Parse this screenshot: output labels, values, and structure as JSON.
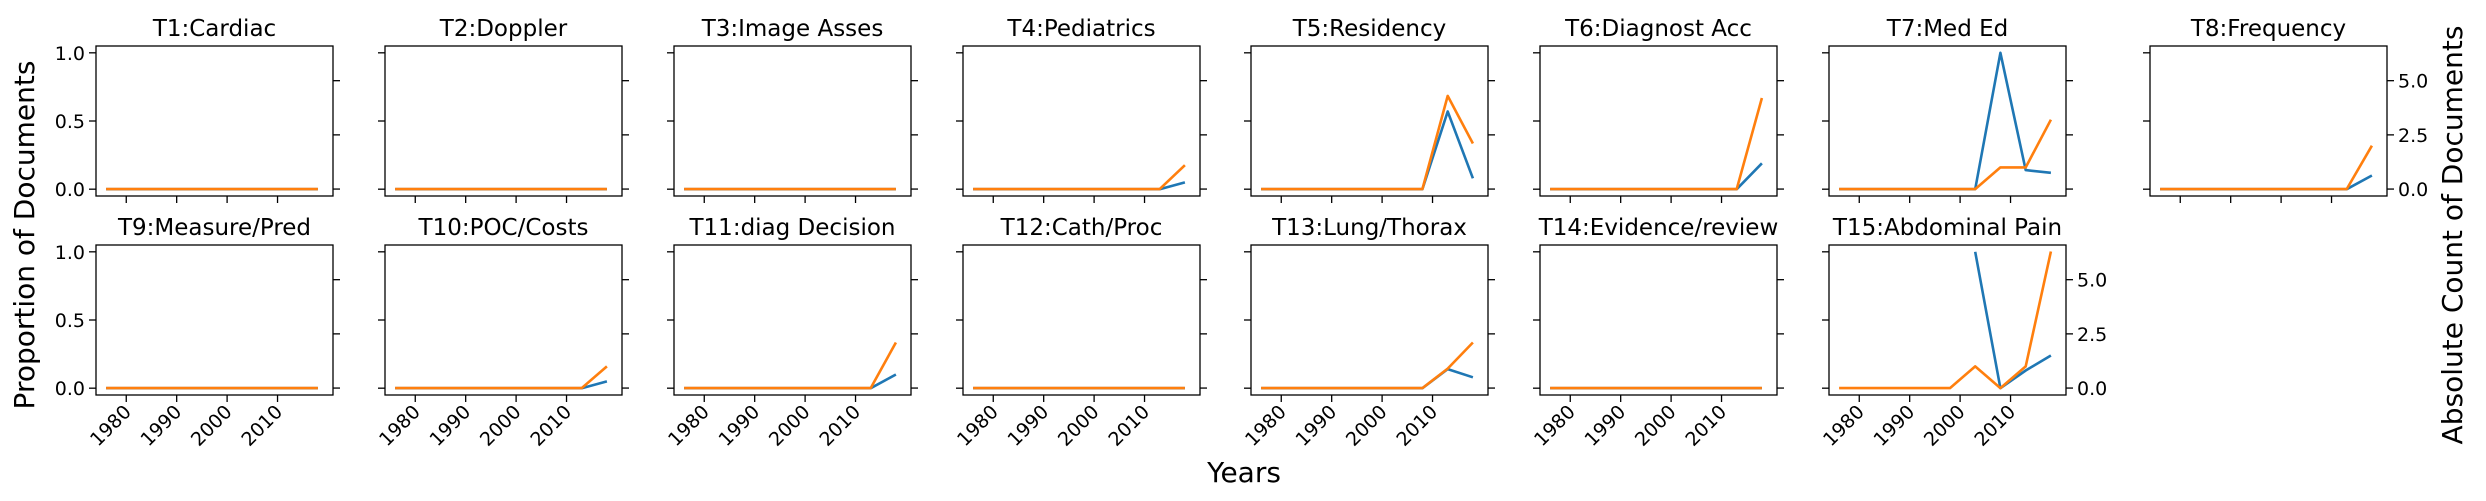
{
  "figure": {
    "x_label": "Years",
    "y_label_left": "Proportion of Documents",
    "y_label_right": "Absolute Count of Documents"
  },
  "colors": {
    "proportion": "#1f77b4",
    "count": "#ff7f0e"
  },
  "chart_data": [
    {
      "type": "line",
      "title": "T1:Cardiac",
      "x": [
        1976,
        1983,
        1988,
        1993,
        1998,
        2003,
        2008,
        2013,
        2018
      ],
      "series": [
        {
          "axis": "left",
          "values": [
            0,
            0,
            0,
            0,
            0,
            0,
            0,
            0,
            0
          ]
        },
        {
          "axis": "right",
          "values": [
            0,
            0,
            0,
            0,
            0,
            0,
            0,
            0,
            0
          ]
        }
      ],
      "xticks": [
        "1980",
        "1990",
        "2000",
        "2010"
      ],
      "xlim": [
        1974,
        2021
      ],
      "ylim": [
        -0.05,
        1.05
      ],
      "yticks": [
        "0.0",
        "0.5",
        "1.0"
      ],
      "ylim_right": [
        -0.32,
        6.6
      ],
      "yticks_right": [
        "0.0",
        "2.5",
        "5.0"
      ]
    },
    {
      "type": "line",
      "title": "T2:Doppler",
      "x": [
        1976,
        1983,
        1988,
        1993,
        1998,
        2003,
        2008,
        2013,
        2018
      ],
      "series": [
        {
          "axis": "left",
          "values": [
            0,
            0,
            0,
            0,
            0,
            0,
            0,
            0,
            0
          ]
        },
        {
          "axis": "right",
          "values": [
            0,
            0,
            0,
            0,
            0,
            0,
            0,
            0,
            0
          ]
        }
      ],
      "xticks": [
        "1980",
        "1990",
        "2000",
        "2010"
      ],
      "xlim": [
        1974,
        2021
      ],
      "ylim": [
        -0.05,
        1.05
      ],
      "yticks": [
        "0.0",
        "0.5",
        "1.0"
      ],
      "ylim_right": [
        -0.32,
        6.6
      ],
      "yticks_right": [
        "0.0",
        "2.5",
        "5.0"
      ]
    },
    {
      "type": "line",
      "title": "T3:Image Asses",
      "x": [
        1976,
        1983,
        1988,
        1993,
        1998,
        2003,
        2008,
        2013,
        2018
      ],
      "series": [
        {
          "axis": "left",
          "values": [
            0,
            0,
            0,
            0,
            0,
            0,
            0,
            0,
            0
          ]
        },
        {
          "axis": "right",
          "values": [
            0,
            0,
            0,
            0,
            0,
            0,
            0,
            0,
            0
          ]
        }
      ],
      "xticks": [
        "1980",
        "1990",
        "2000",
        "2010"
      ],
      "xlim": [
        1974,
        2021
      ],
      "ylim": [
        -0.05,
        1.05
      ],
      "yticks": [
        "0.0",
        "0.5",
        "1.0"
      ],
      "ylim_right": [
        -0.32,
        6.6
      ],
      "yticks_right": [
        "0.0",
        "2.5",
        "5.0"
      ]
    },
    {
      "type": "line",
      "title": "T4:Pediatrics",
      "x": [
        1976,
        1983,
        1988,
        1993,
        1998,
        2003,
        2008,
        2013,
        2018
      ],
      "series": [
        {
          "axis": "left",
          "values": [
            0,
            0,
            0,
            0,
            0,
            0,
            0,
            0,
            0.05
          ]
        },
        {
          "axis": "right",
          "values": [
            0,
            0,
            0,
            0,
            0,
            0,
            0,
            0,
            1.1
          ]
        }
      ],
      "xticks": [
        "1980",
        "1990",
        "2000",
        "2010"
      ],
      "xlim": [
        1974,
        2021
      ],
      "ylim": [
        -0.05,
        1.05
      ],
      "yticks": [
        "0.0",
        "0.5",
        "1.0"
      ],
      "ylim_right": [
        -0.32,
        6.6
      ],
      "yticks_right": [
        "0.0",
        "2.5",
        "5.0"
      ]
    },
    {
      "type": "line",
      "title": "T5:Residency",
      "x": [
        1976,
        1983,
        1988,
        1993,
        1998,
        2003,
        2008,
        2013,
        2018
      ],
      "series": [
        {
          "axis": "left",
          "values": [
            0,
            0,
            0,
            0,
            0,
            0,
            0,
            0.57,
            0.08
          ]
        },
        {
          "axis": "right",
          "values": [
            0,
            0,
            0,
            0,
            0,
            0,
            0,
            4.3,
            2.1
          ]
        }
      ],
      "xticks": [
        "1980",
        "1990",
        "2000",
        "2010"
      ],
      "xlim": [
        1974,
        2021
      ],
      "ylim": [
        -0.05,
        1.05
      ],
      "yticks": [
        "0.0",
        "0.5",
        "1.0"
      ],
      "ylim_right": [
        -0.32,
        6.6
      ],
      "yticks_right": [
        "0.0",
        "2.5",
        "5.0"
      ]
    },
    {
      "type": "line",
      "title": "T6:Diagnost Acc",
      "x": [
        1976,
        1983,
        1988,
        1993,
        1998,
        2003,
        2008,
        2013,
        2018
      ],
      "series": [
        {
          "axis": "left",
          "values": [
            0,
            0,
            0,
            0,
            0,
            0,
            0,
            0,
            0.19
          ]
        },
        {
          "axis": "right",
          "values": [
            0,
            0,
            0,
            0,
            0,
            0,
            0,
            0,
            4.2
          ]
        }
      ],
      "xticks": [
        "1980",
        "1990",
        "2000",
        "2010"
      ],
      "xlim": [
        1974,
        2021
      ],
      "ylim": [
        -0.05,
        1.05
      ],
      "yticks": [
        "0.0",
        "0.5",
        "1.0"
      ],
      "ylim_right": [
        -0.32,
        6.6
      ],
      "yticks_right": [
        "0.0",
        "2.5",
        "5.0"
      ]
    },
    {
      "type": "line",
      "title": "T7:Med Ed",
      "x": [
        1976,
        1983,
        1988,
        1993,
        1998,
        2003,
        2008,
        2013,
        2018
      ],
      "series": [
        {
          "axis": "left",
          "values": [
            0,
            0,
            0,
            0,
            0,
            0,
            1.0,
            0.14,
            0.12
          ]
        },
        {
          "axis": "right",
          "values": [
            0,
            0,
            0,
            0,
            0,
            0,
            1.0,
            1.0,
            3.2
          ]
        }
      ],
      "xticks": [
        "1980",
        "1990",
        "2000",
        "2010"
      ],
      "xlim": [
        1974,
        2021
      ],
      "ylim": [
        -0.05,
        1.05
      ],
      "yticks": [
        "0.0",
        "0.5",
        "1.0"
      ],
      "ylim_right": [
        -0.32,
        6.6
      ],
      "yticks_right": [
        "0.0",
        "2.5",
        "5.0"
      ]
    },
    {
      "type": "line",
      "title": "T8:Frequency",
      "x": [
        1976,
        1983,
        1988,
        1993,
        1998,
        2003,
        2008,
        2013,
        2018
      ],
      "series": [
        {
          "axis": "left",
          "values": [
            0,
            0,
            0,
            0,
            0,
            0,
            0,
            0,
            0.1
          ]
        },
        {
          "axis": "right",
          "values": [
            0,
            0,
            0,
            0,
            0,
            0,
            0,
            0,
            2.0
          ]
        }
      ],
      "xticks": [
        "1980",
        "1990",
        "2000",
        "2010"
      ],
      "xlim": [
        1974,
        2021
      ],
      "ylim": [
        -0.05,
        1.05
      ],
      "yticks": [
        "0.0",
        "0.5",
        "1.0"
      ],
      "ylim_right": [
        -0.32,
        6.6
      ],
      "yticks_right": [
        "0.0",
        "2.5",
        "5.0"
      ]
    },
    {
      "type": "line",
      "title": "T9:Measure/Pred",
      "x": [
        1976,
        1983,
        1988,
        1993,
        1998,
        2003,
        2008,
        2013,
        2018
      ],
      "series": [
        {
          "axis": "left",
          "values": [
            0,
            0,
            0,
            0,
            0,
            0,
            0,
            0,
            0
          ]
        },
        {
          "axis": "right",
          "values": [
            0,
            0,
            0,
            0,
            0,
            0,
            0,
            0,
            0
          ]
        }
      ],
      "xticks": [
        "1980",
        "1990",
        "2000",
        "2010"
      ],
      "xlim": [
        1974,
        2021
      ],
      "ylim": [
        -0.05,
        1.05
      ],
      "yticks": [
        "0.0",
        "0.5",
        "1.0"
      ],
      "ylim_right": [
        -0.32,
        6.6
      ],
      "yticks_right": [
        "0.0",
        "2.5",
        "5.0"
      ]
    },
    {
      "type": "line",
      "title": "T10:POC/Costs",
      "x": [
        1976,
        1983,
        1988,
        1993,
        1998,
        2003,
        2008,
        2013,
        2018
      ],
      "series": [
        {
          "axis": "left",
          "values": [
            0,
            0,
            0,
            0,
            0,
            0,
            0,
            0,
            0.05
          ]
        },
        {
          "axis": "right",
          "values": [
            0,
            0,
            0,
            0,
            0,
            0,
            0,
            0,
            1.0
          ]
        }
      ],
      "xticks": [
        "1980",
        "1990",
        "2000",
        "2010"
      ],
      "xlim": [
        1974,
        2021
      ],
      "ylim": [
        -0.05,
        1.05
      ],
      "yticks": [
        "0.0",
        "0.5",
        "1.0"
      ],
      "ylim_right": [
        -0.32,
        6.6
      ],
      "yticks_right": [
        "0.0",
        "2.5",
        "5.0"
      ]
    },
    {
      "type": "line",
      "title": "T11:diag Decision",
      "x": [
        1976,
        1983,
        1988,
        1993,
        1998,
        2003,
        2008,
        2013,
        2018
      ],
      "series": [
        {
          "axis": "left",
          "values": [
            0,
            0,
            0,
            0,
            0,
            0,
            0,
            0,
            0.1
          ]
        },
        {
          "axis": "right",
          "values": [
            0,
            0,
            0,
            0,
            0,
            0,
            0,
            0,
            2.1
          ]
        }
      ],
      "xticks": [
        "1980",
        "1990",
        "2000",
        "2010"
      ],
      "xlim": [
        1974,
        2021
      ],
      "ylim": [
        -0.05,
        1.05
      ],
      "yticks": [
        "0.0",
        "0.5",
        "1.0"
      ],
      "ylim_right": [
        -0.32,
        6.6
      ],
      "yticks_right": [
        "0.0",
        "2.5",
        "5.0"
      ]
    },
    {
      "type": "line",
      "title": "T12:Cath/Proc",
      "x": [
        1976,
        1983,
        1988,
        1993,
        1998,
        2003,
        2008,
        2013,
        2018
      ],
      "series": [
        {
          "axis": "left",
          "values": [
            0,
            0,
            0,
            0,
            0,
            0,
            0,
            0,
            0
          ]
        },
        {
          "axis": "right",
          "values": [
            0,
            0,
            0,
            0,
            0,
            0,
            0,
            0,
            0
          ]
        }
      ],
      "xticks": [
        "1980",
        "1990",
        "2000",
        "2010"
      ],
      "xlim": [
        1974,
        2021
      ],
      "ylim": [
        -0.05,
        1.05
      ],
      "yticks": [
        "0.0",
        "0.5",
        "1.0"
      ],
      "ylim_right": [
        -0.32,
        6.6
      ],
      "yticks_right": [
        "0.0",
        "2.5",
        "5.0"
      ]
    },
    {
      "type": "line",
      "title": "T13:Lung/Thorax",
      "x": [
        1976,
        1983,
        1988,
        1993,
        1998,
        2003,
        2008,
        2013,
        2018
      ],
      "series": [
        {
          "axis": "left",
          "values": [
            0,
            0,
            0,
            0,
            0,
            0,
            0,
            0.14,
            0.08
          ]
        },
        {
          "axis": "right",
          "values": [
            0,
            0,
            0,
            0,
            0,
            0,
            0,
            0.9,
            2.1
          ]
        }
      ],
      "xticks": [
        "1980",
        "1990",
        "2000",
        "2010"
      ],
      "xlim": [
        1974,
        2021
      ],
      "ylim": [
        -0.05,
        1.05
      ],
      "yticks": [
        "0.0",
        "0.5",
        "1.0"
      ],
      "ylim_right": [
        -0.32,
        6.6
      ],
      "yticks_right": [
        "0.0",
        "2.5",
        "5.0"
      ]
    },
    {
      "type": "line",
      "title": "T14:Evidence/review",
      "x": [
        1976,
        1983,
        1988,
        1993,
        1998,
        2003,
        2008,
        2013,
        2018
      ],
      "series": [
        {
          "axis": "left",
          "values": [
            0,
            0,
            0,
            0,
            0,
            0,
            0,
            0,
            0
          ]
        },
        {
          "axis": "right",
          "values": [
            0,
            0,
            0,
            0,
            0,
            0,
            0,
            0,
            0
          ]
        }
      ],
      "xticks": [
        "1980",
        "1990",
        "2000",
        "2010"
      ],
      "xlim": [
        1974,
        2021
      ],
      "ylim": [
        -0.05,
        1.05
      ],
      "yticks": [
        "0.0",
        "0.5",
        "1.0"
      ],
      "ylim_right": [
        -0.32,
        6.6
      ],
      "yticks_right": [
        "0.0",
        "2.5",
        "5.0"
      ]
    },
    {
      "type": "line",
      "title": "T15:Abdominal Pain",
      "x": [
        1976,
        1983,
        1988,
        1993,
        1998,
        2003,
        2008,
        2013,
        2018
      ],
      "series": [
        {
          "axis": "left",
          "values": [
            null,
            null,
            null,
            null,
            null,
            1.0,
            0.0,
            0.13,
            0.24
          ]
        },
        {
          "axis": "right",
          "values": [
            0,
            0,
            0,
            0,
            0,
            1.0,
            0,
            1.0,
            6.3
          ]
        }
      ],
      "xticks": [
        "1980",
        "1990",
        "2000",
        "2010"
      ],
      "xlim": [
        1974,
        2021
      ],
      "ylim": [
        -0.05,
        1.05
      ],
      "yticks": [
        "0.0",
        "0.5",
        "1.0"
      ],
      "ylim_right": [
        -0.32,
        6.6
      ],
      "yticks_right": [
        "0.0",
        "2.5",
        "5.0"
      ]
    }
  ]
}
